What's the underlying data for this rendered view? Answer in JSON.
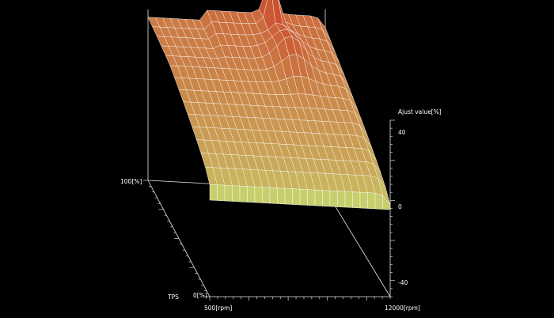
{
  "plot": {
    "z_axis_title": "Ajust value[%]",
    "tps_axis_title": "TPS",
    "tps_max_label": "100[%]",
    "tps_min_label": "0[%]",
    "rpm_min_label": "500[rpm]",
    "rpm_max_label": "12000[rpm]",
    "z_tick_labels": [
      "40",
      "0",
      "-40"
    ]
  },
  "colors": {
    "background": "#000000",
    "surface_low": "#c8d06a",
    "surface_high": "#c8442c",
    "grid": "#ffffff"
  }
}
